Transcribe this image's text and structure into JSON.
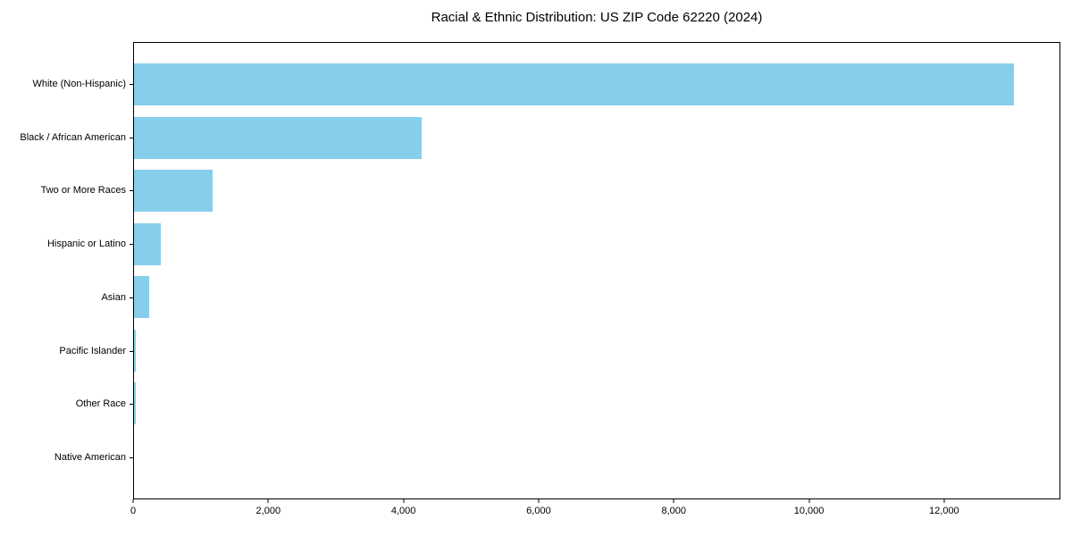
{
  "chart_data": {
    "type": "bar",
    "orientation": "horizontal",
    "title": "Racial & Ethnic Distribution: US ZIP Code 62220 (2024)",
    "categories": [
      "White (Non-Hispanic)",
      "Black / African American",
      "Two or More Races",
      "Hispanic or Latino",
      "Asian",
      "Pacific Islander",
      "Other Race",
      "Native American"
    ],
    "values": [
      13045,
      4260,
      1170,
      400,
      220,
      30,
      30,
      0
    ],
    "xlabel": "",
    "ylabel": "",
    "xlim": [
      0,
      13720
    ],
    "x_ticks": [
      0,
      2000,
      4000,
      6000,
      8000,
      10000,
      12000
    ],
    "x_tick_labels": [
      "0",
      "2,000",
      "4,000",
      "6,000",
      "8,000",
      "10,000",
      "12,000"
    ],
    "bar_color": "#87CEEB",
    "background_color": "#ffffff",
    "grid": false,
    "legend": null
  }
}
